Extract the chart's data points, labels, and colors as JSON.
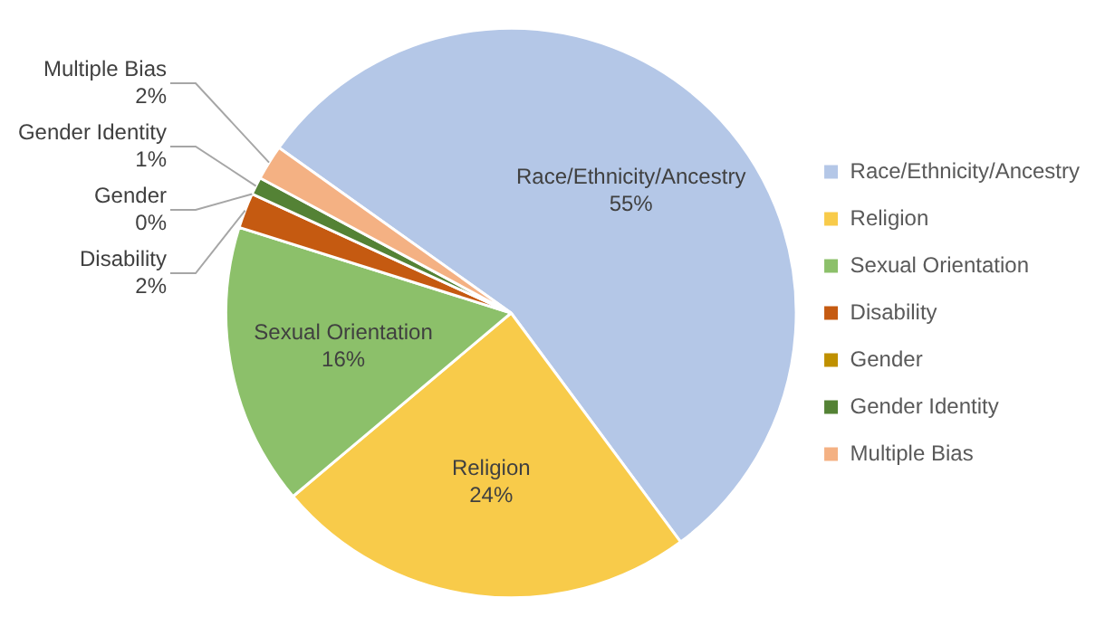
{
  "chart_data": {
    "type": "pie",
    "categories": [
      "Race/Ethnicity/Ancestry",
      "Religion",
      "Sexual Orientation",
      "Disability",
      "Gender",
      "Gender Identity",
      "Multiple Bias"
    ],
    "values": [
      55,
      24,
      16,
      2,
      0,
      1,
      2
    ],
    "value_labels": [
      "55%",
      "24%",
      "16%",
      "2%",
      "0%",
      "1%",
      "2%"
    ],
    "colors": [
      "#b4c7e7",
      "#f8cb4a",
      "#8cc06a",
      "#c55a11",
      "#bf9000",
      "#548235",
      "#f4b183"
    ],
    "legend": "right"
  }
}
